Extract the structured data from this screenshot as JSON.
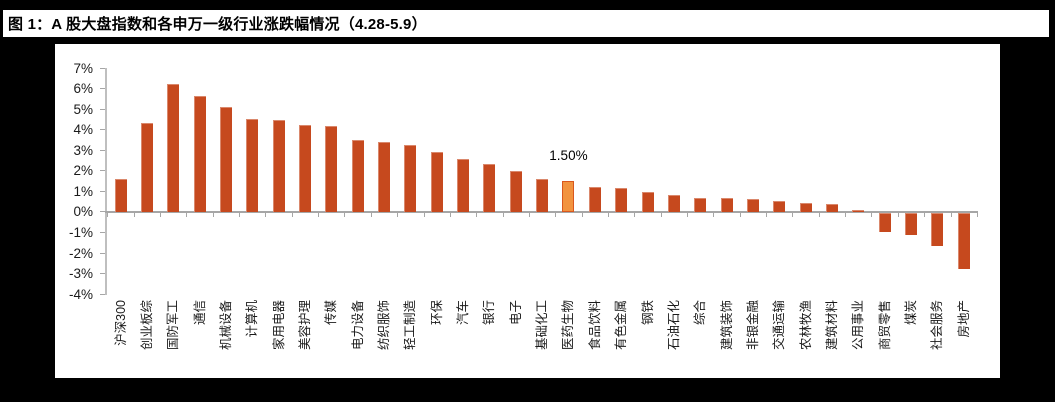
{
  "figure": {
    "title": "图 1：A 股大盘指数和各申万一级行业涨跌幅情况（4.28-5.9）"
  },
  "chart_data": {
    "type": "bar",
    "title": "图 1：A 股大盘指数和各申万一级行业涨跌幅情况（4.28-5.9）",
    "categories": [
      "沪深300",
      "创业板综",
      "国防军工",
      "通信",
      "机械设备",
      "计算机",
      "家用电器",
      "美容护理",
      "传媒",
      "电力设备",
      "纺织服饰",
      "轻工制造",
      "环保",
      "汽车",
      "银行",
      "电子",
      "基础化工",
      "医药生物",
      "食品饮料",
      "有色金属",
      "钢铁",
      "石油石化",
      "综合",
      "建筑装饰",
      "非银金融",
      "交通运输",
      "农林牧渔",
      "建筑材料",
      "公用事业",
      "商贸零售",
      "煤炭",
      "社会服务",
      "房地产"
    ],
    "values": [
      1.6,
      4.35,
      6.2,
      5.65,
      5.1,
      4.5,
      4.45,
      4.25,
      4.2,
      3.5,
      3.4,
      3.25,
      2.9,
      2.6,
      2.35,
      2.0,
      1.6,
      1.5,
      1.2,
      1.15,
      0.95,
      0.85,
      0.7,
      0.7,
      0.65,
      0.55,
      0.45,
      0.4,
      0.1,
      -0.9,
      -1.05,
      -1.6,
      -2.7
    ],
    "unit": "%",
    "xlabel": "",
    "ylabel": "",
    "ylim": [
      -4,
      7
    ],
    "ytick_labels": [
      "7%",
      "6%",
      "5%",
      "4%",
      "3%",
      "2%",
      "1%",
      "0%",
      "-1%",
      "-2%",
      "-3%",
      "-4%"
    ],
    "grid": false,
    "legend": "none",
    "highlight": {
      "index": 17,
      "category": "医药生物",
      "data_label": "1.50%"
    },
    "colors": {
      "bar": "#c6491e",
      "highlight_fill": "#f2933f",
      "highlight_border": "#d9571e",
      "axis": "#a6a6a6",
      "y_axis_line": "#bfbfbf",
      "panel_background": "#ffffff",
      "canvas_background": "#000000",
      "text": "#1a1a1a"
    }
  }
}
